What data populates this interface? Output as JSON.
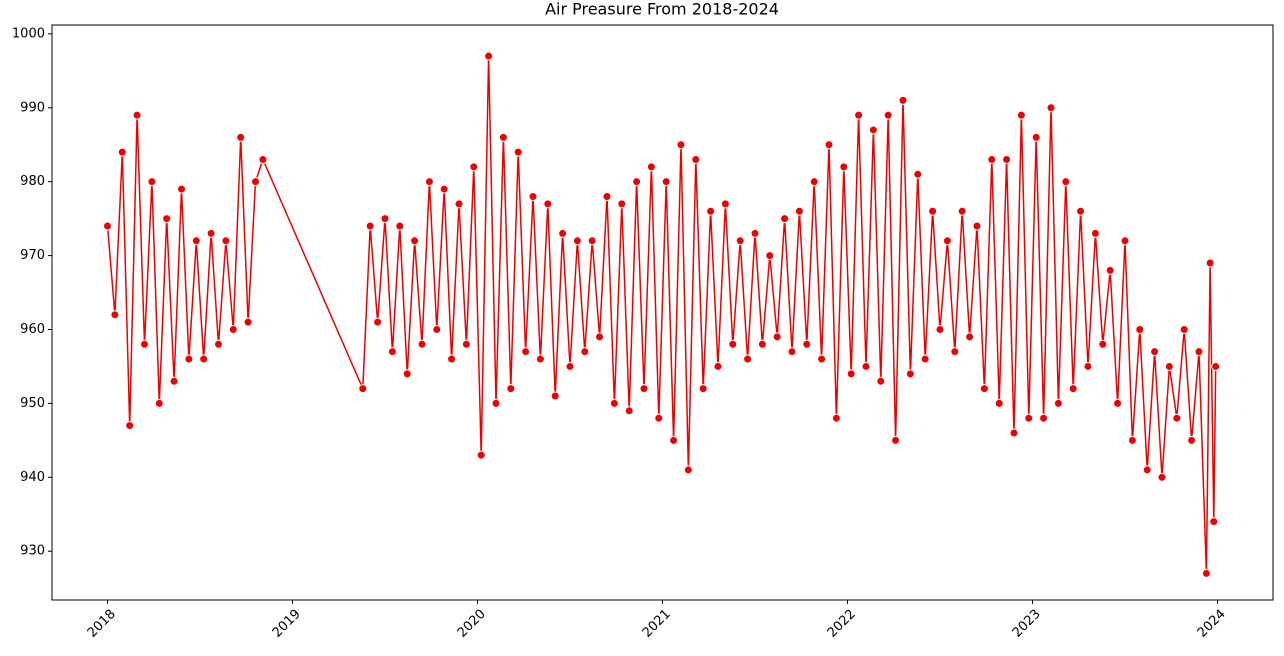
{
  "chart_data": {
    "type": "line",
    "title": "Air Preasure From 2018-2024",
    "color": "#ee0000",
    "marker_edge": "#ffffff",
    "x": [
      2018.0,
      2018.04,
      2018.08,
      2018.12,
      2018.16,
      2018.2,
      2018.24,
      2018.28,
      2018.32,
      2018.36,
      2018.4,
      2018.44,
      2018.48,
      2018.52,
      2018.56,
      2018.6,
      2018.64,
      2018.68,
      2018.72,
      2018.76,
      2018.8,
      2018.84,
      2019.38,
      2019.42,
      2019.46,
      2019.5,
      2019.54,
      2019.58,
      2019.62,
      2019.66,
      2019.7,
      2019.74,
      2019.78,
      2019.82,
      2019.86,
      2019.9,
      2019.94,
      2019.98,
      2020.02,
      2020.06,
      2020.1,
      2020.14,
      2020.18,
      2020.22,
      2020.26,
      2020.3,
      2020.34,
      2020.38,
      2020.42,
      2020.46,
      2020.5,
      2020.54,
      2020.58,
      2020.62,
      2020.66,
      2020.7,
      2020.74,
      2020.78,
      2020.82,
      2020.86,
      2020.9,
      2020.94,
      2020.98,
      2021.02,
      2021.06,
      2021.1,
      2021.14,
      2021.18,
      2021.22,
      2021.26,
      2021.3,
      2021.34,
      2021.38,
      2021.42,
      2021.46,
      2021.5,
      2021.54,
      2021.58,
      2021.62,
      2021.66,
      2021.7,
      2021.74,
      2021.78,
      2021.82,
      2021.86,
      2021.9,
      2021.94,
      2021.98,
      2022.02,
      2022.06,
      2022.1,
      2022.14,
      2022.18,
      2022.22,
      2022.26,
      2022.3,
      2022.34,
      2022.38,
      2022.42,
      2022.46,
      2022.5,
      2022.54,
      2022.58,
      2022.62,
      2022.66,
      2022.7,
      2022.74,
      2022.78,
      2022.82,
      2022.86,
      2022.9,
      2022.94,
      2022.98,
      2023.02,
      2023.06,
      2023.1,
      2023.14,
      2023.18,
      2023.22,
      2023.26,
      2023.3,
      2023.34,
      2023.38,
      2023.42,
      2023.46,
      2023.5,
      2023.54,
      2023.58,
      2023.62,
      2023.66,
      2023.7,
      2023.74,
      2023.78,
      2023.82,
      2023.86,
      2023.9,
      2023.94,
      2023.96,
      2023.98,
      2023.99
    ],
    "values": [
      974,
      962,
      984,
      947,
      989,
      958,
      980,
      950,
      975,
      953,
      979,
      956,
      972,
      956,
      973,
      958,
      972,
      960,
      986,
      961,
      980,
      983,
      952,
      974,
      961,
      975,
      957,
      974,
      954,
      972,
      958,
      980,
      960,
      979,
      956,
      977,
      958,
      982,
      943,
      997,
      950,
      986,
      952,
      984,
      957,
      978,
      956,
      977,
      951,
      973,
      955,
      972,
      957,
      972,
      959,
      978,
      950,
      977,
      949,
      980,
      952,
      982,
      948,
      980,
      945,
      985,
      941,
      983,
      952,
      976,
      955,
      977,
      958,
      972,
      956,
      973,
      958,
      970,
      959,
      975,
      957,
      976,
      958,
      980,
      956,
      985,
      948,
      982,
      954,
      989,
      955,
      987,
      953,
      989,
      945,
      991,
      954,
      981,
      956,
      976,
      960,
      972,
      957,
      976,
      959,
      974,
      952,
      983,
      950,
      983,
      946,
      989,
      948,
      986,
      948,
      990,
      950,
      980,
      952,
      976,
      955,
      973,
      958,
      968,
      950,
      972,
      945,
      960,
      941,
      957,
      940,
      955,
      948,
      960,
      945,
      957,
      927,
      969,
      934,
      955
    ],
    "xlim": [
      2017.7,
      2024.3
    ],
    "xticks": [
      2018,
      2019,
      2020,
      2021,
      2022,
      2023,
      2024
    ],
    "ylim": [
      923.4,
      1001.2
    ],
    "yticks": [
      930,
      940,
      950,
      960,
      970,
      980,
      990,
      1000
    ]
  }
}
